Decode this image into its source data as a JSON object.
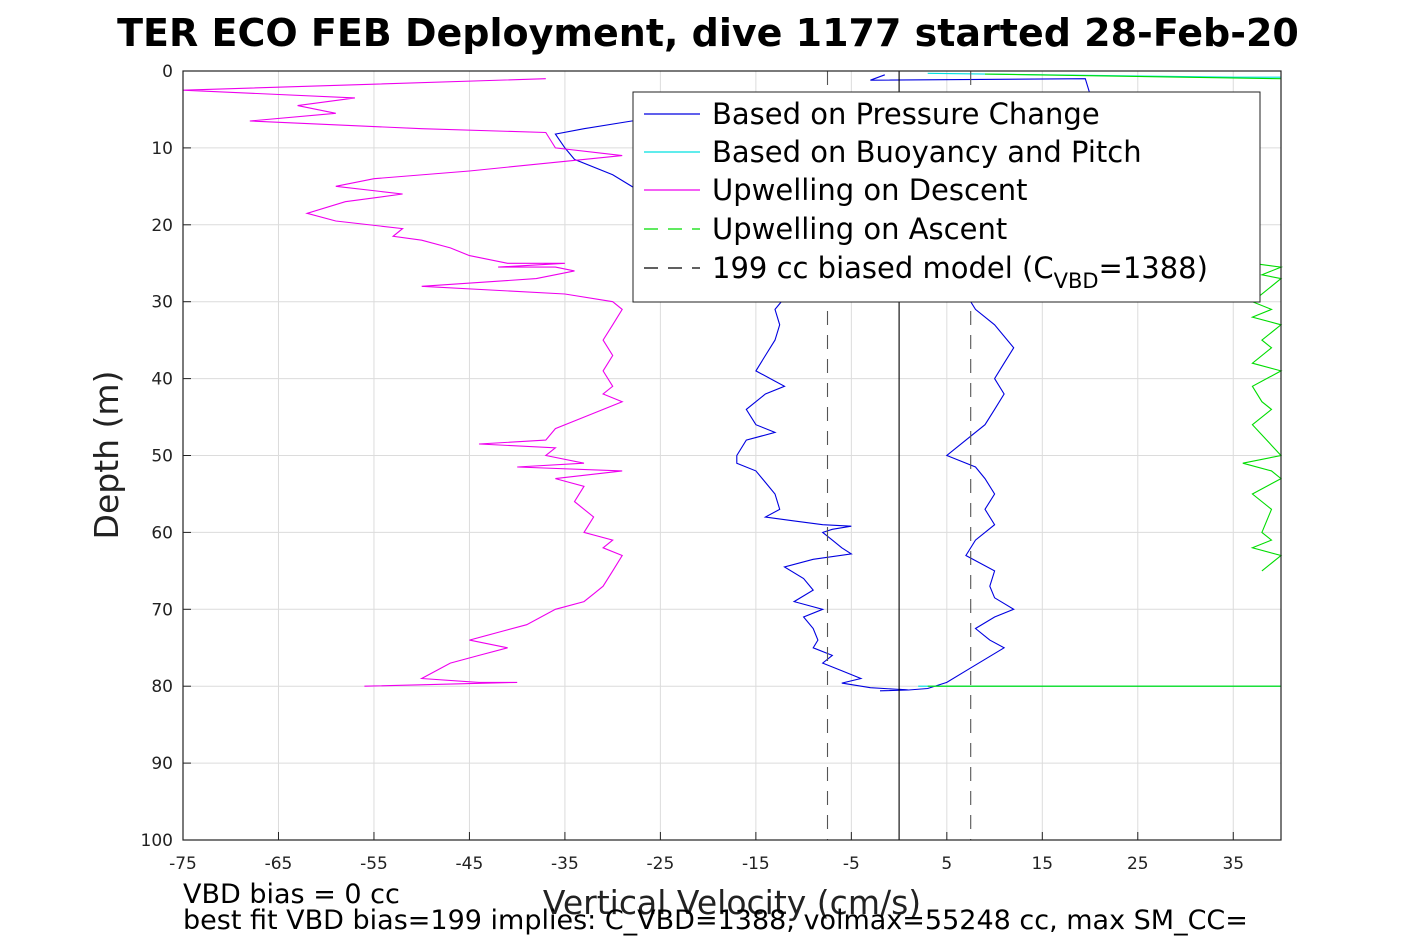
{
  "chart_data": {
    "type": "line",
    "title": "TER ECO FEB Deployment, dive 1177 started 28-Feb-20",
    "xlabel": "Vertical Velocity (cm/s)",
    "ylabel": "Depth (m)",
    "xlim": [
      -75,
      40
    ],
    "ylim": [
      0,
      100
    ],
    "y_reversed": true,
    "grid": true,
    "xticks": [
      "-75",
      "-65",
      "-55",
      "-45",
      "-35",
      "-25",
      "-15",
      "-5",
      "5",
      "15",
      "25",
      "35"
    ],
    "yticks": [
      "0",
      "10",
      "20",
      "30",
      "40",
      "50",
      "60",
      "70",
      "80",
      "90",
      "100"
    ],
    "legend": {
      "position": "top-right",
      "entries": [
        {
          "label": "Based on Pressure Change",
          "color": "#0000e0",
          "dash": "solid"
        },
        {
          "label": "Based on Buoyancy and Pitch",
          "color": "#00e0e0",
          "dash": "solid"
        },
        {
          "label": "Upwelling on Descent",
          "color": "#ee00ee",
          "dash": "solid"
        },
        {
          "label": "Upwelling on Ascent",
          "color": "#00dd00",
          "dash": "dashed"
        },
        {
          "label_main": "199 cc biased model (C",
          "label_sub": "VBD",
          "label_tail": "=1388)",
          "color": "#000000",
          "dash": "dashed"
        }
      ]
    },
    "series": [
      {
        "name": "Based on Pressure Change",
        "color": "#0000e0",
        "points": [
          [
            -1.5,
            0.5
          ],
          [
            -3,
            1.2
          ],
          [
            19.5,
            1
          ],
          [
            20,
            3
          ],
          [
            -5,
            4
          ],
          [
            -18,
            5.5
          ],
          [
            -28,
            6.5
          ],
          [
            -33,
            7.5
          ],
          [
            -36,
            8.2
          ],
          [
            -35,
            10
          ],
          [
            -34,
            11.5
          ],
          [
            -30,
            13.5
          ],
          [
            -26,
            16.5
          ],
          [
            -22,
            20
          ],
          [
            -17,
            24
          ],
          [
            -13,
            27
          ],
          [
            -12,
            29.5
          ],
          [
            -13,
            31
          ],
          [
            -12.5,
            33
          ],
          [
            -13,
            35
          ],
          [
            -14,
            37
          ],
          [
            -15,
            39
          ],
          [
            -12,
            41
          ],
          [
            -14,
            42
          ],
          [
            -16,
            44
          ],
          [
            -15,
            46
          ],
          [
            -13,
            47
          ],
          [
            -16,
            48
          ],
          [
            -17,
            50
          ],
          [
            -17,
            51
          ],
          [
            -15,
            52
          ],
          [
            -14,
            53.5
          ],
          [
            -13,
            55
          ],
          [
            -12.5,
            57
          ],
          [
            -14,
            58
          ],
          [
            -11,
            58.5
          ],
          [
            -8,
            59
          ],
          [
            -5,
            59.2
          ],
          [
            -7,
            59.6
          ],
          [
            -8,
            60
          ],
          [
            -7,
            61
          ],
          [
            -6,
            62
          ],
          [
            -5,
            62.8
          ],
          [
            -9,
            63.5
          ],
          [
            -12,
            64.5
          ],
          [
            -10,
            66
          ],
          [
            -9,
            67.5
          ],
          [
            -11,
            69
          ],
          [
            -8,
            70
          ],
          [
            -10,
            71
          ],
          [
            -9,
            72.5
          ],
          [
            -8.5,
            74
          ],
          [
            -9,
            75
          ],
          [
            -7,
            76
          ],
          [
            -8,
            77
          ],
          [
            -6,
            78
          ],
          [
            -4,
            79
          ],
          [
            -6,
            79.6
          ],
          [
            -3,
            80.2
          ],
          [
            1,
            80.5
          ],
          [
            -2,
            80.6
          ]
        ]
      },
      {
        "name": "Based on Pressure Change",
        "color": "#0000e0",
        "points": [
          [
            0,
            80.4
          ],
          [
            1,
            80.5
          ],
          [
            3,
            80.3
          ],
          [
            5,
            79.5
          ],
          [
            7,
            78
          ],
          [
            9,
            76.5
          ],
          [
            11,
            75
          ],
          [
            9.5,
            74
          ],
          [
            8,
            72.5
          ],
          [
            10,
            71
          ],
          [
            12,
            70
          ],
          [
            10,
            68.5
          ],
          [
            9.5,
            67
          ],
          [
            10,
            65
          ],
          [
            7,
            63
          ],
          [
            8,
            61
          ],
          [
            10,
            59
          ],
          [
            9,
            57
          ],
          [
            10,
            55
          ],
          [
            9,
            53
          ],
          [
            8,
            51.5
          ],
          [
            5,
            50
          ],
          [
            7,
            48
          ],
          [
            9,
            46
          ],
          [
            10,
            44
          ],
          [
            11,
            42
          ],
          [
            10,
            40
          ],
          [
            11,
            38
          ],
          [
            12,
            36
          ],
          [
            10,
            33
          ],
          [
            8,
            31
          ],
          [
            7,
            29
          ],
          [
            9,
            27
          ],
          [
            8,
            25
          ]
        ]
      },
      {
        "name": "Based on Buoyancy and Pitch",
        "color": "#00e0e0",
        "points": [
          [
            3,
            0.3
          ],
          [
            35,
            0.8
          ],
          [
            40,
            0.8
          ]
        ]
      },
      {
        "name": "Based on Buoyancy and Pitch",
        "color": "#00e0e0",
        "points": [
          [
            2,
            80
          ],
          [
            40,
            80
          ]
        ]
      },
      {
        "name": "Upwelling on Descent",
        "color": "#ee00ee",
        "points": [
          [
            -37,
            1
          ],
          [
            -75,
            2.5
          ],
          [
            -57,
            3.5
          ],
          [
            -63,
            4.5
          ],
          [
            -59,
            5.5
          ],
          [
            -68,
            6.5
          ],
          [
            -50,
            7.5
          ],
          [
            -37,
            8
          ],
          [
            -36,
            10
          ],
          [
            -29,
            11
          ],
          [
            -33,
            11.5
          ],
          [
            -45,
            13
          ],
          [
            -55,
            14
          ],
          [
            -59,
            15
          ],
          [
            -52,
            16
          ],
          [
            -58,
            17
          ],
          [
            -62,
            18.5
          ],
          [
            -59,
            19.5
          ],
          [
            -52,
            20.5
          ],
          [
            -53,
            21.5
          ],
          [
            -50,
            22
          ],
          [
            -47,
            23
          ],
          [
            -45,
            24
          ],
          [
            -41,
            25
          ],
          [
            -35,
            25
          ],
          [
            -42,
            25.5
          ],
          [
            -36,
            25.5
          ],
          [
            -34,
            26
          ],
          [
            -38,
            27
          ],
          [
            -50,
            28
          ],
          [
            -35,
            29
          ],
          [
            -30,
            30
          ],
          [
            -29,
            31
          ],
          [
            -30,
            33
          ],
          [
            -31,
            35
          ],
          [
            -30,
            37
          ],
          [
            -31,
            39
          ],
          [
            -30,
            41
          ],
          [
            -31,
            42
          ],
          [
            -29,
            43
          ],
          [
            -33,
            45
          ],
          [
            -36,
            46.5
          ],
          [
            -37,
            48
          ],
          [
            -44,
            48.5
          ],
          [
            -36,
            49
          ],
          [
            -37,
            50
          ],
          [
            -33,
            51
          ],
          [
            -40,
            51.5
          ],
          [
            -29,
            52
          ],
          [
            -36,
            53
          ],
          [
            -33,
            54
          ],
          [
            -34,
            56
          ],
          [
            -32,
            58
          ],
          [
            -33,
            60
          ],
          [
            -30,
            61
          ],
          [
            -31,
            62
          ],
          [
            -29,
            63
          ],
          [
            -30,
            65
          ],
          [
            -31,
            67
          ],
          [
            -32,
            68
          ],
          [
            -33,
            69
          ],
          [
            -36,
            70
          ],
          [
            -39,
            72
          ],
          [
            -42,
            73
          ],
          [
            -45,
            74
          ],
          [
            -41,
            75
          ],
          [
            -44,
            76
          ],
          [
            -47,
            77
          ],
          [
            -50,
            79
          ],
          [
            -44,
            79.5
          ],
          [
            -40,
            79.5
          ],
          [
            -56,
            80
          ]
        ]
      },
      {
        "name": "Upwelling on Ascent",
        "color": "#00dd00",
        "points": [
          [
            9,
            0.4
          ],
          [
            40,
            1
          ]
        ]
      },
      {
        "name": "Upwelling on Ascent",
        "color": "#00dd00",
        "points": [
          [
            3,
            80
          ],
          [
            40,
            80
          ]
        ]
      },
      {
        "name": "Upwelling on Ascent",
        "color": "#00dd00",
        "points": [
          [
            37,
            25
          ],
          [
            40,
            25.5
          ],
          [
            38,
            26.5
          ],
          [
            40,
            27
          ],
          [
            37,
            30
          ],
          [
            39,
            31
          ],
          [
            37,
            32
          ],
          [
            40,
            33
          ],
          [
            38,
            35
          ],
          [
            39,
            36
          ],
          [
            37,
            38
          ],
          [
            40,
            39
          ],
          [
            37,
            41
          ],
          [
            38,
            43
          ],
          [
            39,
            44
          ],
          [
            37,
            46
          ],
          [
            40,
            50
          ],
          [
            36,
            51
          ],
          [
            39,
            52
          ],
          [
            40,
            53
          ],
          [
            37,
            55
          ],
          [
            39,
            57
          ],
          [
            38,
            60
          ],
          [
            39,
            61
          ],
          [
            37,
            62
          ],
          [
            40,
            63
          ],
          [
            38,
            65
          ]
        ]
      },
      {
        "name": "199 cc biased model (C_VBD=1388)",
        "color": "#555555",
        "dash": "dashed",
        "points": [
          [
            -7.5,
            0
          ],
          [
            -7.5,
            100
          ]
        ]
      },
      {
        "name": "199 cc biased model (C_VBD=1388)",
        "color": "#555555",
        "dash": "dashed",
        "points": [
          [
            7.5,
            0
          ],
          [
            7.5,
            100
          ]
        ]
      },
      {
        "name": "zero line",
        "color": "#000000",
        "points": [
          [
            0,
            0
          ],
          [
            0,
            100
          ]
        ]
      }
    ],
    "annotations": [
      "VBD bias = 0 cc",
      "best fit VBD bias=199 implies: C_VBD=1388, volmax=55248 cc, max SM_CC="
    ]
  }
}
